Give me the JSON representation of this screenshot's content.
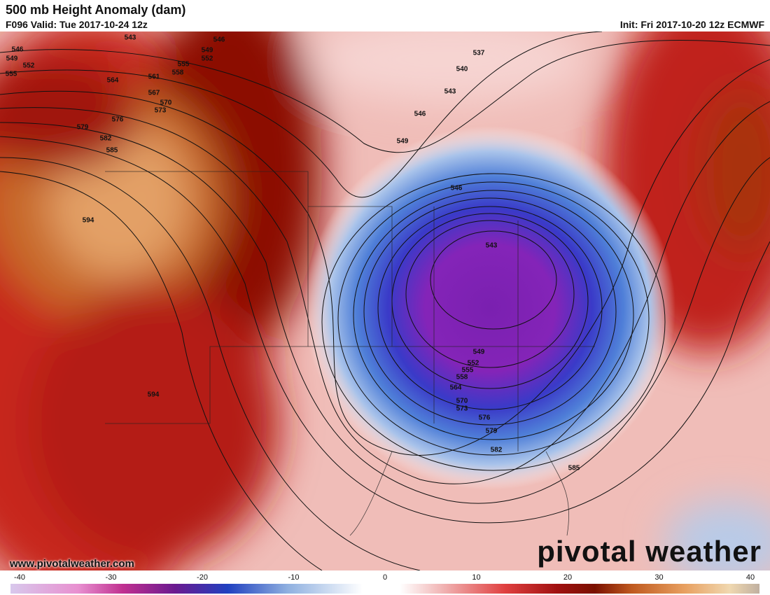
{
  "header": {
    "title": "500 mb Height Anomaly (dam)",
    "valid": "F096 Valid: Tue 2017-10-24 12z",
    "init": "Init: Fri 2017-10-20 12z ECMWF"
  },
  "map": {
    "contour_labels": [
      "546",
      "549",
      "552",
      "555",
      "543",
      "546",
      "549",
      "552",
      "555",
      "558",
      "561",
      "564",
      "567",
      "570",
      "573",
      "576",
      "579",
      "582",
      "585",
      "594",
      "594",
      "537",
      "540",
      "543",
      "546",
      "549",
      "546",
      "543",
      "549",
      "552",
      "555",
      "558",
      "564",
      "570",
      "573",
      "576",
      "579",
      "582",
      "585"
    ]
  },
  "colorbar": {
    "ticks": [
      -40,
      -30,
      -20,
      -10,
      0,
      10,
      20,
      30,
      40
    ]
  },
  "footer": {
    "url": "www.pivotalweather.com",
    "logo": "pivotal weather"
  }
}
